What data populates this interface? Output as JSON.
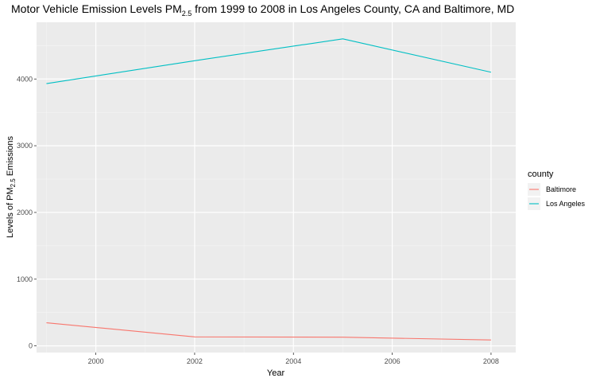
{
  "chart_data": {
    "type": "line",
    "title_main": "Motor Vehicle Emission Levels PM",
    "title_sub": "2.5",
    "title_rest": "  from 1999 to 2008 in Los Angeles County, CA and Baltimore, MD",
    "xlabel": "Year",
    "ylabel_main": "Levels of PM",
    "ylabel_sub": "2.5",
    "ylabel_rest": " Emissions",
    "x_ticks": [
      "2000",
      "2002",
      "2004",
      "2006",
      "2008"
    ],
    "y_ticks": [
      "0",
      "1000",
      "2000",
      "3000",
      "4000"
    ],
    "xlim": [
      1998.8,
      2008.5
    ],
    "ylim": [
      -100,
      4850
    ],
    "grid": true,
    "legend_title": "county",
    "legend_position": "right",
    "x": [
      1999,
      2002,
      2005,
      2008
    ],
    "series": [
      {
        "name": "Baltimore",
        "color": "#F8766D",
        "values": [
          346.8,
          134.3,
          130.4,
          88.3
        ]
      },
      {
        "name": "Los Angeles",
        "color": "#00BFC4",
        "values": [
          3931.1,
          4274.0,
          4601.4,
          4101.3
        ]
      }
    ]
  }
}
